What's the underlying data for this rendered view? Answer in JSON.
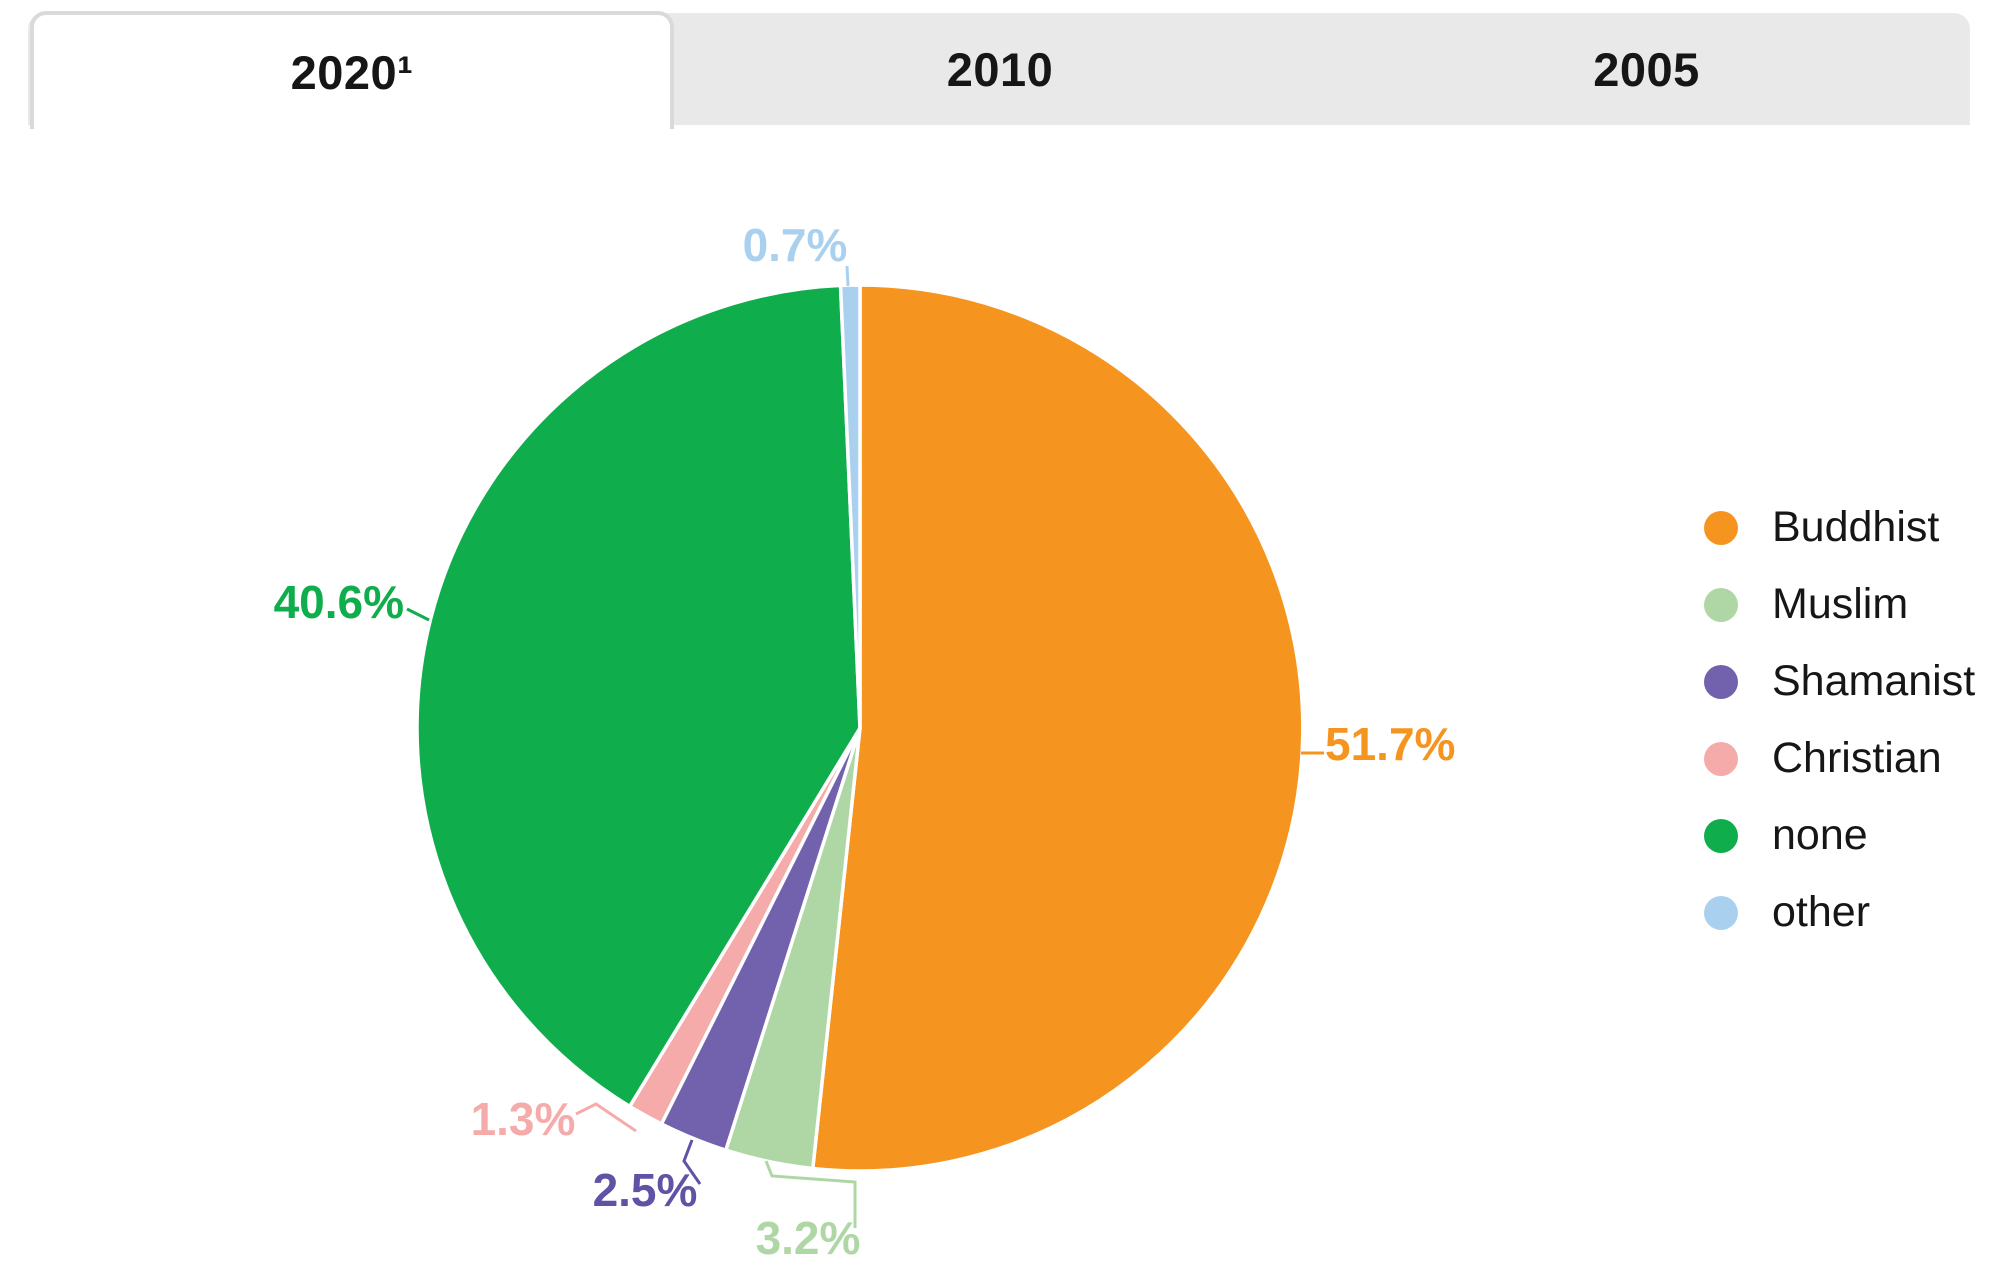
{
  "tabs": [
    {
      "label": "2020¹",
      "active": true
    },
    {
      "label": "2010",
      "active": false
    },
    {
      "label": "2005",
      "active": false
    }
  ],
  "chart_data": {
    "type": "pie",
    "title": "Religious affiliation shares by year (2020 tab active)",
    "start_angle_deg": 0,
    "direction": "clockwise",
    "legend_position": "right",
    "slices": [
      {
        "label": "Buddhist",
        "value": 51.7,
        "display": "51.7%",
        "color": "#F5941F",
        "label_color": "#F5941F"
      },
      {
        "label": "Muslim",
        "value": 3.2,
        "display": "3.2%",
        "color": "#AFD7A5",
        "label_color": "#AFD7A5"
      },
      {
        "label": "Shamanist",
        "value": 2.5,
        "display": "2.5%",
        "color": "#7261AC",
        "label_color": "#5F53A6"
      },
      {
        "label": "Christian",
        "value": 1.3,
        "display": "1.3%",
        "color": "#F6ABAB",
        "label_color": "#F6ABAB"
      },
      {
        "label": "none",
        "value": 40.6,
        "display": "40.6%",
        "color": "#10AD4D",
        "label_color": "#10AD4D"
      },
      {
        "label": "other",
        "value": 0.7,
        "display": "0.7%",
        "color": "#A9D1EF",
        "label_color": "#A9D1EF"
      }
    ]
  },
  "legend": {
    "items": [
      {
        "label": "Buddhist",
        "color": "#F5941F"
      },
      {
        "label": "Muslim",
        "color": "#AFD7A5"
      },
      {
        "label": "Shamanist",
        "color": "#7261AC"
      },
      {
        "label": "Christian",
        "color": "#F6ABAB"
      },
      {
        "label": "none",
        "color": "#10AD4D"
      },
      {
        "label": "other",
        "color": "#A9D1EF"
      }
    ]
  }
}
